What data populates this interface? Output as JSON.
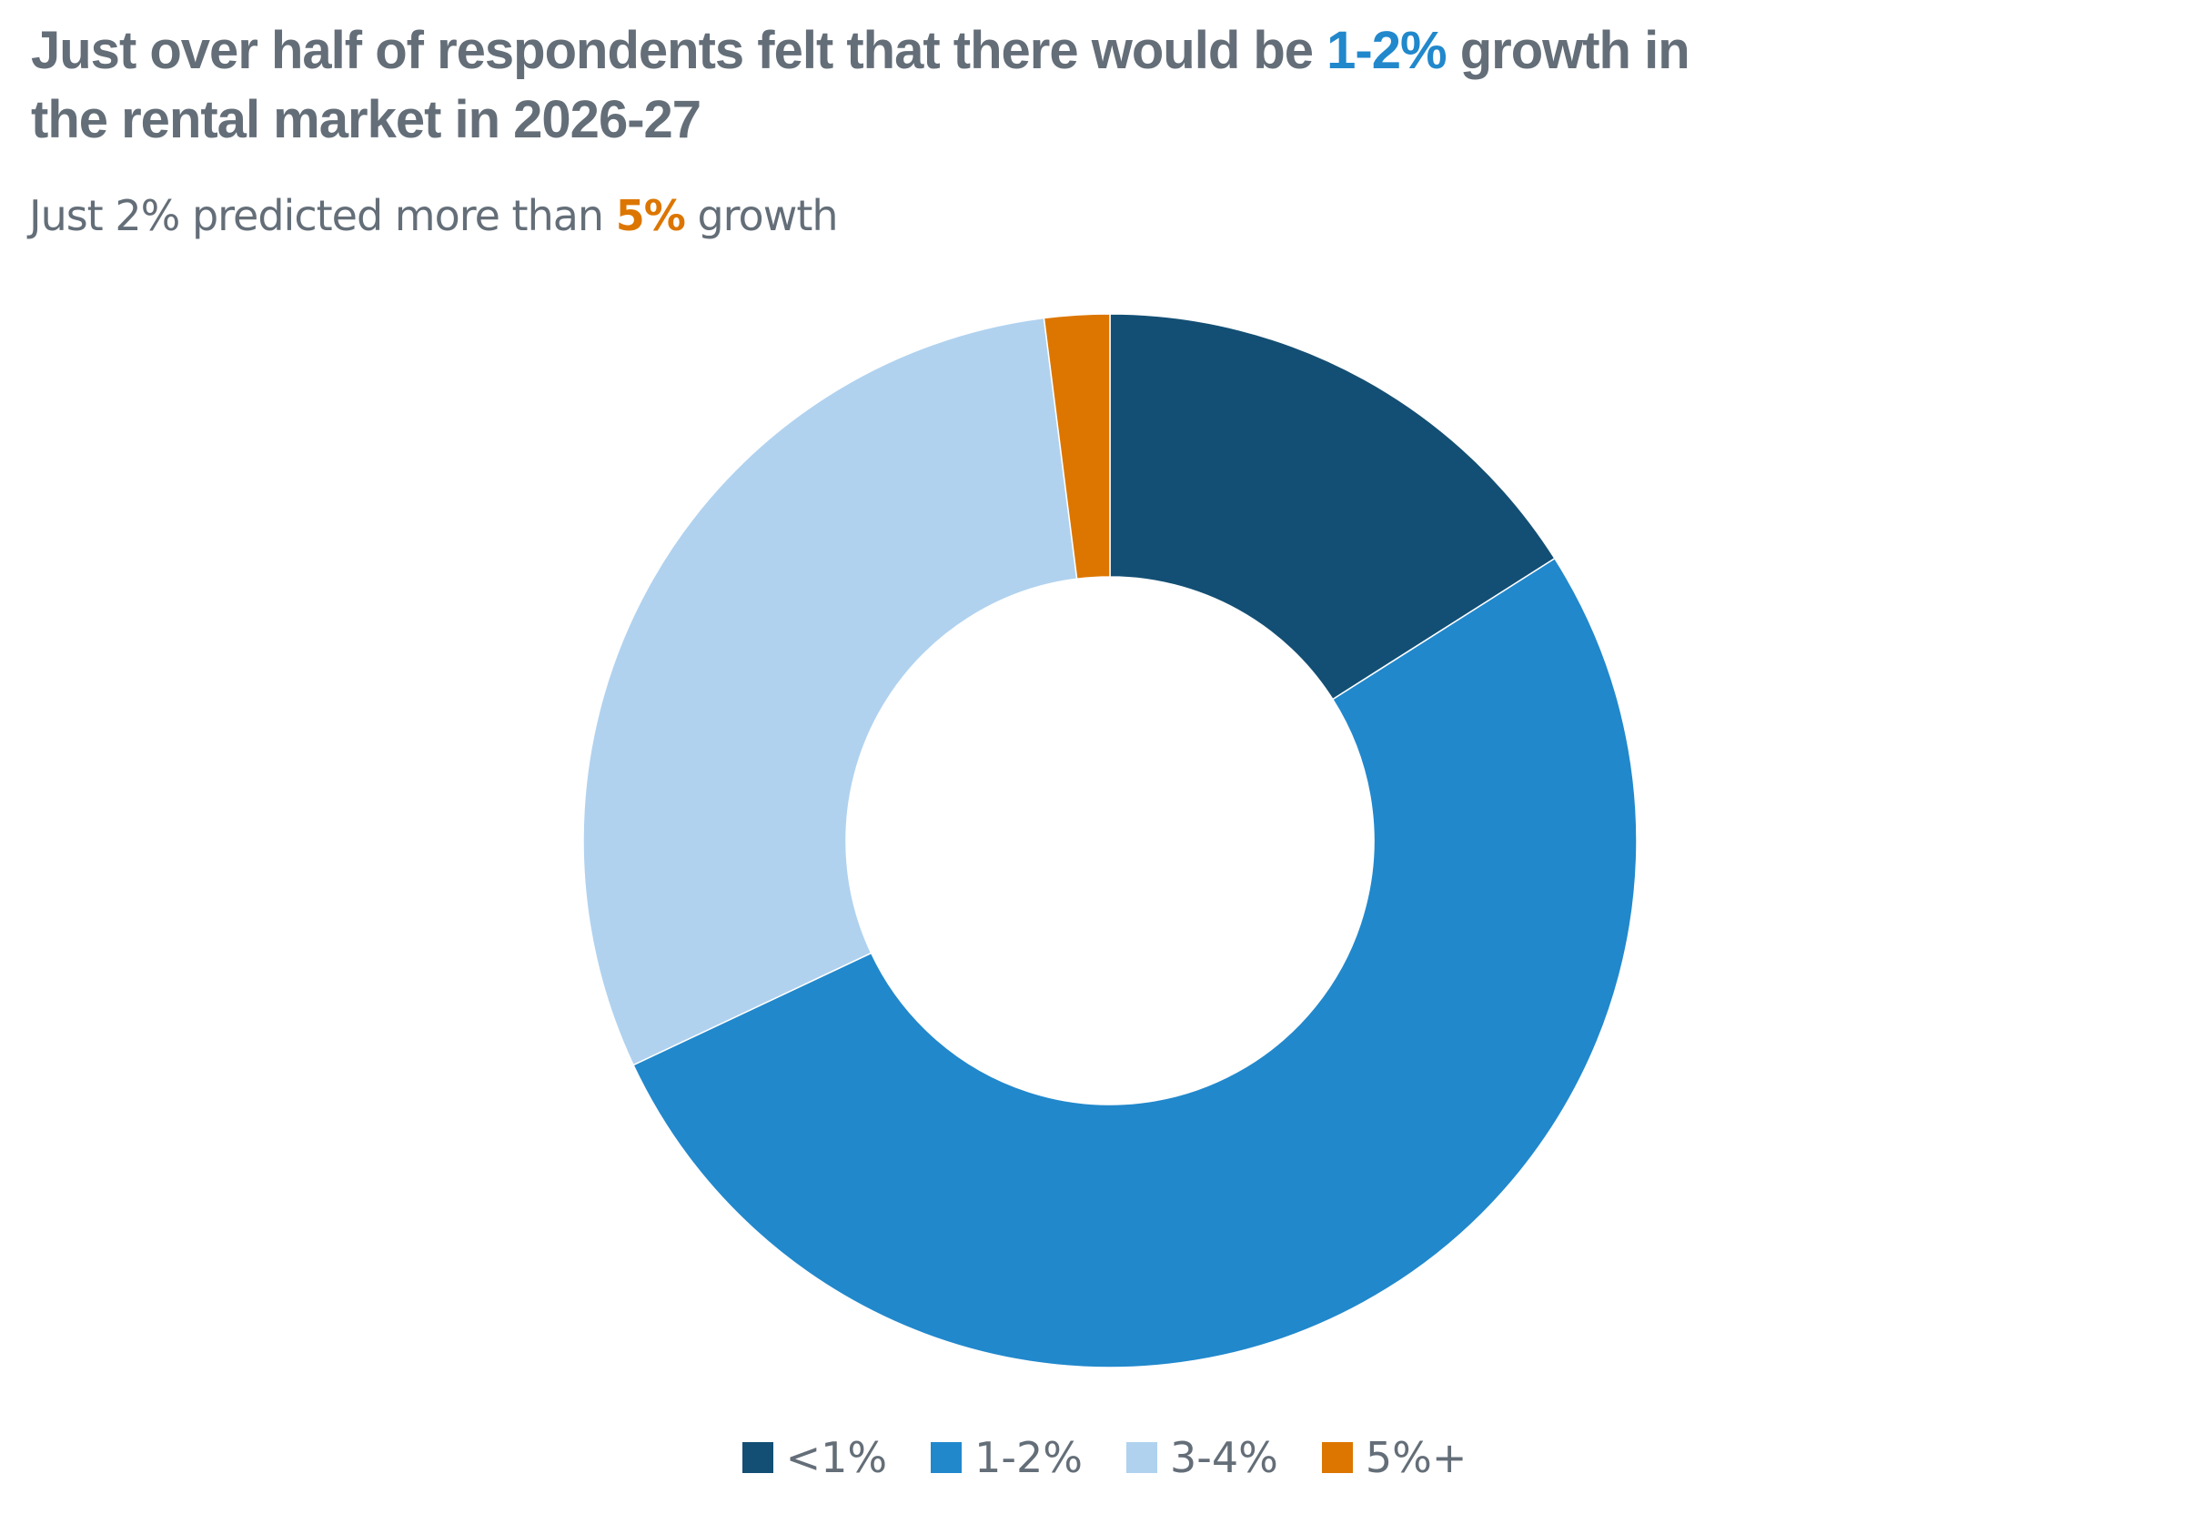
{
  "title": {
    "part1": "Just over half of respondents felt that there would be ",
    "highlight": "1-2%",
    "part2": " growth in the rental market in 2026-27"
  },
  "subtitle": {
    "part1": "Just 2% predicted more than ",
    "highlight": "5%",
    "part2": " growth"
  },
  "chart_data": {
    "type": "pie",
    "variant": "donut",
    "title": "Just over half of respondents felt that there would be 1-2% growth in the rental market in 2026-27",
    "subtitle": "Just 2% predicted more than 5% growth",
    "categories": [
      "<1%",
      "1-2%",
      "3-4%",
      "5%+"
    ],
    "values": [
      16,
      52,
      30,
      2
    ],
    "unit": "%",
    "colors": [
      "#134f74",
      "#2188cc",
      "#b0d2ef",
      "#dc7600"
    ],
    "legend_position": "bottom"
  }
}
